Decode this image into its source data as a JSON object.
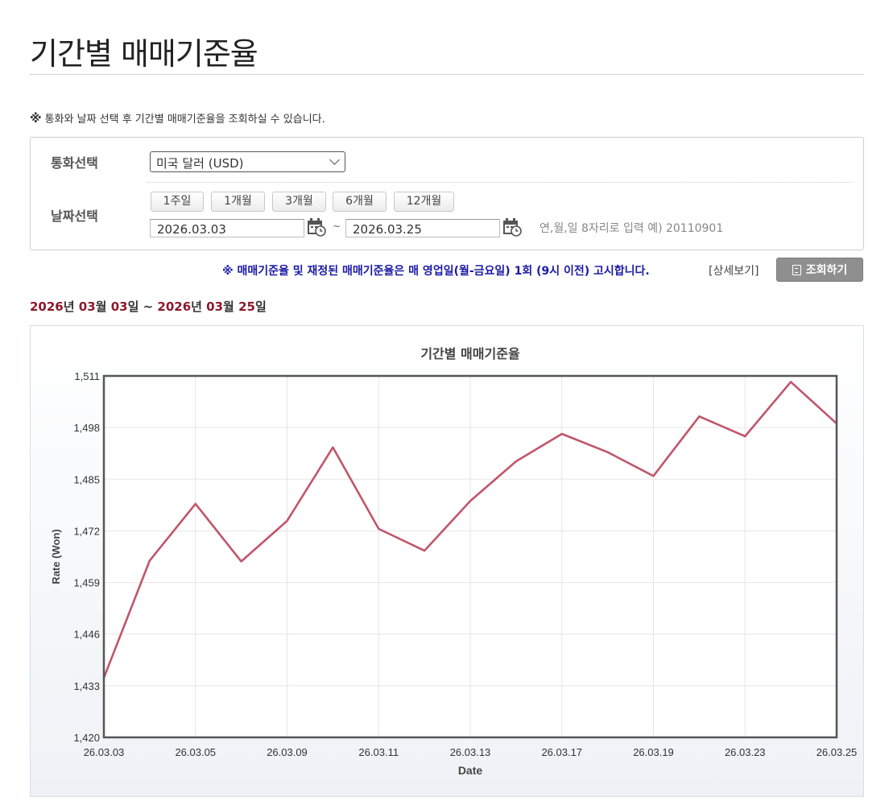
{
  "page": {
    "title": "기간별 매매기준율",
    "notice_mark": "※",
    "notice_text": "통화와 날짜 선택 후 기간별 매매기준율을 조회하실 수 있습니다."
  },
  "search": {
    "currency_label": "통화선택",
    "currency_value": "미국 달러 (USD)",
    "date_label": "날짜선택",
    "period_buttons": [
      "1주일",
      "1개월",
      "3개월",
      "6개월",
      "12개월"
    ],
    "start_date": "2026.03.03",
    "tilde": "~",
    "end_date": "2026.03.25",
    "date_hint": "연,월,일 8자리로 입력 예) 20110901"
  },
  "info": {
    "blue_notice": "※ 매매기준율 및 재정된 매매기준율은 매 영업일(월-금요일) 1회 (9시 이전) 고시합니다.",
    "detail_link": "[상세보기]",
    "search_button": "조회하기"
  },
  "range": {
    "y1": "2026",
    "u_year1": "년 ",
    "m1": "03",
    "u_month1": "월 ",
    "d1": "03",
    "u_day1": "일 ~ ",
    "y2": "2026",
    "u_year2": "년 ",
    "m2": "03",
    "u_month2": "월 ",
    "d2": "25",
    "u_day2": "일"
  },
  "colors": {
    "line": "#c0566b",
    "range_red": "#8b1a2b",
    "notice_blue": "#1a1aa6"
  },
  "chart_data": {
    "type": "line",
    "title": "기간별 매매기준율",
    "xlabel": "Date",
    "ylabel": "Rate (Won)",
    "ylim": [
      1420,
      1511
    ],
    "y_ticks": [
      1420,
      1433,
      1446,
      1459,
      1472,
      1485,
      1498,
      1511
    ],
    "y_tick_labels": [
      "1,420",
      "1,433",
      "1,446",
      "1,459",
      "1,472",
      "1,485",
      "1,498",
      "1,511"
    ],
    "x_tick_labels": [
      "26.03.03",
      "26.03.05",
      "26.03.09",
      "26.03.11",
      "26.03.13",
      "26.03.17",
      "26.03.19",
      "26.03.23",
      "26.03.25"
    ],
    "x": [
      "26.03.03",
      "26.03.04",
      "26.03.05",
      "26.03.06",
      "26.03.09",
      "26.03.10",
      "26.03.11",
      "26.03.12",
      "26.03.13",
      "26.03.16",
      "26.03.17",
      "26.03.18",
      "26.03.19",
      "26.03.20",
      "26.03.23",
      "26.03.24",
      "26.03.25"
    ],
    "values": [
      1435,
      1464.5,
      1478.8,
      1464.3,
      1474.5,
      1493,
      1472.5,
      1467,
      1479.5,
      1489.5,
      1496.4,
      1491.8,
      1485.8,
      1500.8,
      1495.8,
      1509.5,
      1499
    ],
    "grid": true,
    "legend": "none"
  }
}
